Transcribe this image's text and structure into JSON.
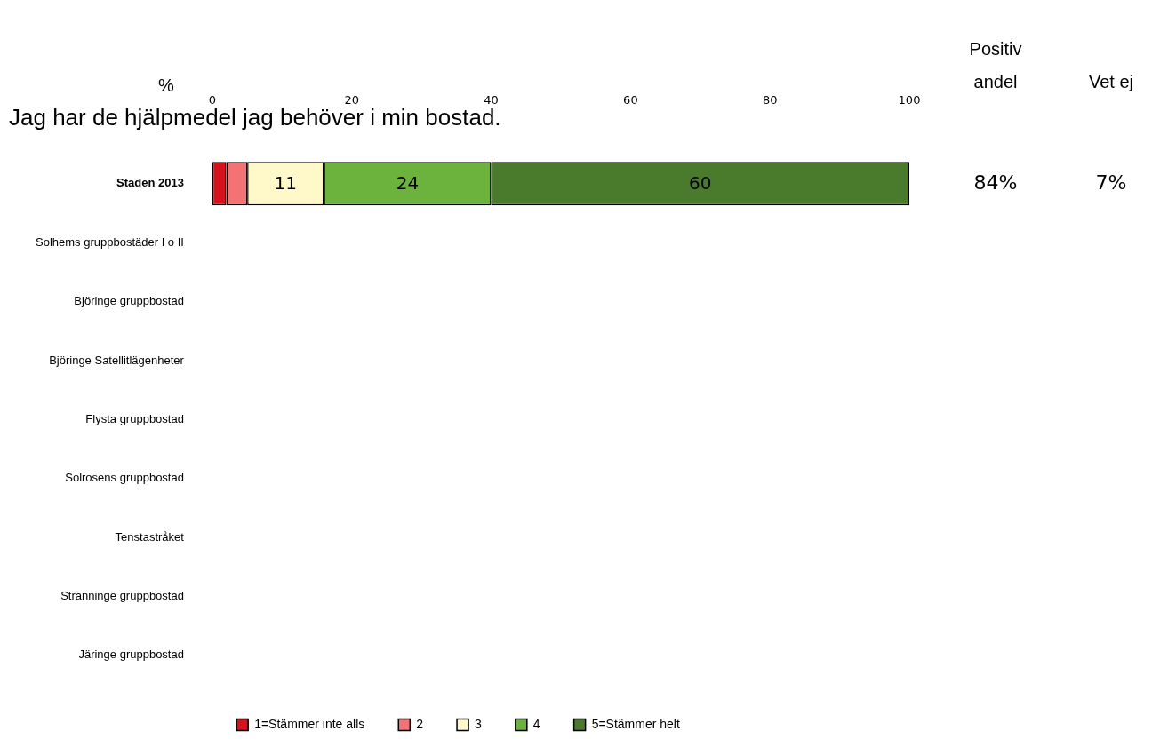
{
  "chart_data": {
    "type": "bar",
    "orientation": "horizontal",
    "stacked": true,
    "title": "Jag har de hjälpmedel jag behöver i min bostad.",
    "xlabel": "%",
    "categories": [
      "Staden 2013",
      "Solhems gruppbostäder I o II",
      "Björinge gruppbostad",
      "Björinge Satellitlägenheter",
      "Flysta gruppbostad",
      "Solrosens gruppbostad",
      "Tenstastråket",
      "Stranninge gruppbostad",
      "Järinge gruppbostad"
    ],
    "xlim": [
      0,
      100
    ],
    "xticks": [
      0,
      20,
      40,
      60,
      80,
      100
    ],
    "grid": false,
    "legend": "bottom",
    "series": [
      {
        "name": "1=Stämmer inte alls",
        "color": "#d7121b",
        "values": [
          2,
          null,
          null,
          null,
          null,
          null,
          null,
          null,
          null
        ],
        "value_labels": [
          null,
          null,
          null,
          null,
          null,
          null,
          null,
          null,
          null
        ]
      },
      {
        "name": "2",
        "color": "#f47274",
        "values": [
          3,
          null,
          null,
          null,
          null,
          null,
          null,
          null,
          null
        ],
        "value_labels": [
          null,
          null,
          null,
          null,
          null,
          null,
          null,
          null,
          null
        ]
      },
      {
        "name": "3",
        "color": "#fff8c8",
        "values": [
          11,
          null,
          null,
          null,
          null,
          null,
          null,
          null,
          null
        ],
        "value_labels": [
          "11",
          null,
          null,
          null,
          null,
          null,
          null,
          null,
          null
        ]
      },
      {
        "name": "4",
        "color": "#6cb33e",
        "values": [
          24,
          null,
          null,
          null,
          null,
          null,
          null,
          null,
          null
        ],
        "value_labels": [
          "24",
          null,
          null,
          null,
          null,
          null,
          null,
          null,
          null
        ]
      },
      {
        "name": "5=Stämmer helt",
        "color": "#4a7a2b",
        "values": [
          60,
          null,
          null,
          null,
          null,
          null,
          null,
          null,
          null
        ],
        "value_labels": [
          "60",
          null,
          null,
          null,
          null,
          null,
          null,
          null,
          null
        ]
      }
    ],
    "annotations": [
      "Positiv andel",
      "Vet ej",
      "84%",
      "7%"
    ]
  }
}
